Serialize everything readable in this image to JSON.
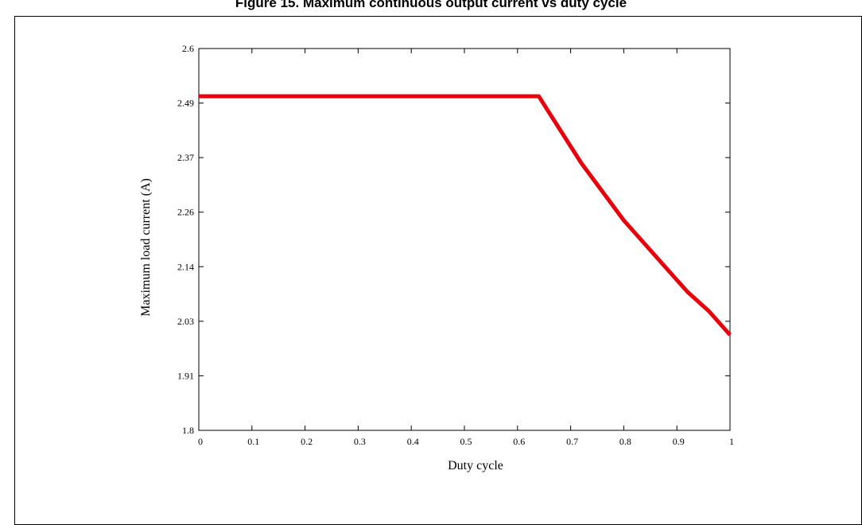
{
  "figure": {
    "title": "Figure 15. Maximum continuous output current vs duty cycle"
  },
  "chart_data": {
    "type": "line",
    "title": "",
    "xlabel": "Duty cycle",
    "ylabel": "Maximum load current (A)",
    "xlim": [
      0,
      1
    ],
    "ylim": [
      1.8,
      2.6
    ],
    "x_ticks": [
      "0",
      "0.1",
      "0.2",
      "0.3",
      "0.4",
      "0.5",
      "0.6",
      "0.7",
      "0.8",
      "0.9",
      "1"
    ],
    "y_ticks": [
      "1.8",
      "1.91",
      "2.03",
      "2.14",
      "2.26",
      "2.37",
      "2.49",
      "2.6"
    ],
    "grid": false,
    "legend": "none",
    "series": [
      {
        "color": "#e8000b",
        "x": [
          0,
          0.1,
          0.2,
          0.3,
          0.4,
          0.5,
          0.6,
          0.64,
          0.68,
          0.72,
          0.76,
          0.8,
          0.84,
          0.88,
          0.92,
          0.96,
          1.0
        ],
        "y": [
          2.5,
          2.5,
          2.5,
          2.5,
          2.5,
          2.5,
          2.5,
          2.5,
          2.43,
          2.36,
          2.3,
          2.24,
          2.19,
          2.14,
          2.09,
          2.05,
          2.0
        ]
      }
    ]
  }
}
